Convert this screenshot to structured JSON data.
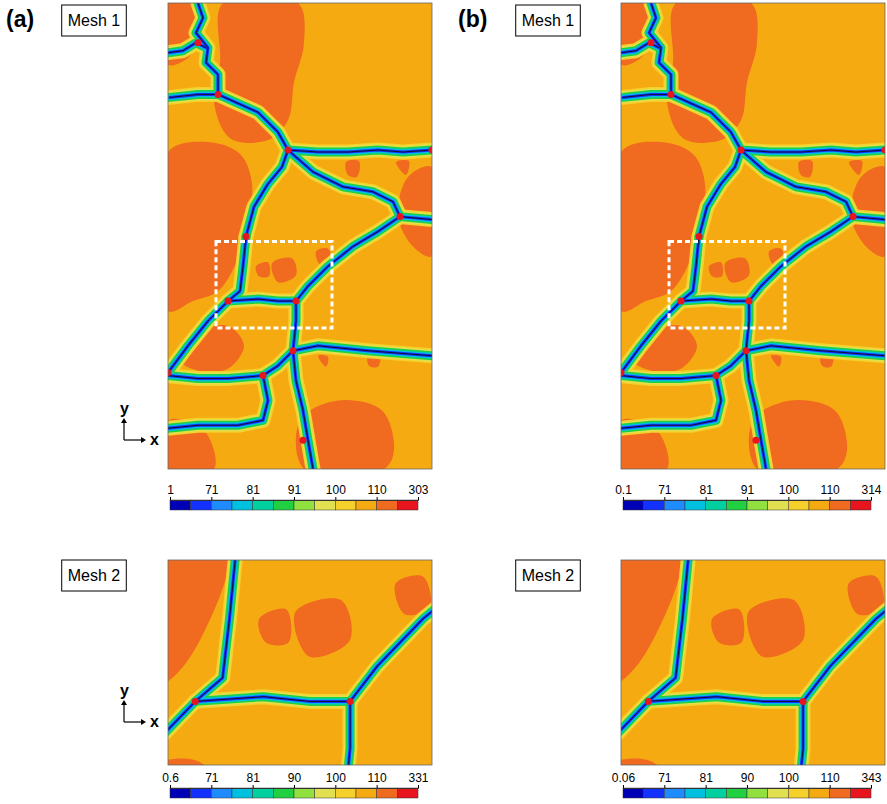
{
  "chart_data": [
    {
      "type": "contour",
      "panel": "(a)",
      "title": "Mesh 1",
      "x_label": "x",
      "y_label": "y",
      "colorbar_ticks": [
        1,
        71,
        81,
        91,
        100,
        110,
        303
      ],
      "colors": [
        "#0000b4",
        "#1432ff",
        "#1e8cff",
        "#00c0e0",
        "#00d0a0",
        "#20d040",
        "#90e040",
        "#e0e050",
        "#f5d02a",
        "#f5aa12",
        "#f06a20",
        "#e8141e"
      ]
    },
    {
      "type": "contour",
      "panel": "(b)",
      "title": "Mesh 1",
      "colorbar_ticks": [
        0.1,
        71,
        81,
        91,
        100,
        110,
        314
      ],
      "colors": [
        "#0000b4",
        "#1432ff",
        "#1e8cff",
        "#00c0e0",
        "#00d0a0",
        "#20d040",
        "#90e040",
        "#e0e050",
        "#f5d02a",
        "#f5aa12",
        "#f06a20",
        "#e8141e"
      ]
    },
    {
      "type": "contour",
      "title": "Mesh 2",
      "x_label": "x",
      "y_label": "y",
      "colorbar_ticks": [
        0.6,
        71,
        81,
        90,
        100,
        110,
        331
      ],
      "colors": [
        "#0000b4",
        "#1432ff",
        "#1e8cff",
        "#00c0e0",
        "#00d0a0",
        "#20d040",
        "#90e040",
        "#e0e050",
        "#f5d02a",
        "#f5aa12",
        "#f06a20",
        "#e8141e"
      ]
    },
    {
      "type": "contour",
      "title": "Mesh 2",
      "colorbar_ticks": [
        0.06,
        71,
        81,
        90,
        100,
        110,
        343
      ],
      "colors": [
        "#0000b4",
        "#1432ff",
        "#1e8cff",
        "#00c0e0",
        "#00d0a0",
        "#20d040",
        "#90e040",
        "#e0e050",
        "#f5d02a",
        "#f5aa12",
        "#f06a20",
        "#e8141e"
      ]
    }
  ]
}
